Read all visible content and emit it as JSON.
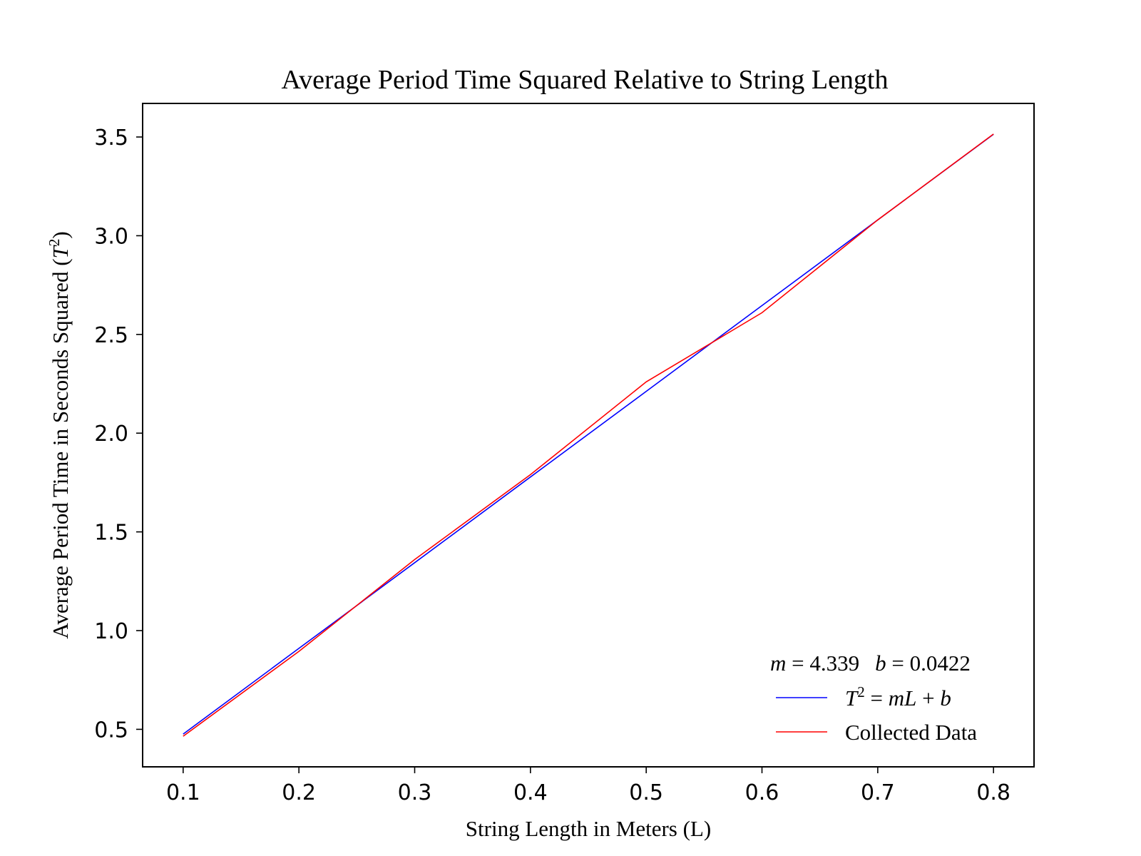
{
  "chart_data": {
    "type": "line",
    "title": "Average Period Time Squared Relative to String Length",
    "xlabel": "String Length in Meters (L)",
    "ylabel_prefix": "Average Period Time in Seconds Squared (",
    "ylabel_var": "T",
    "ylabel_sup": "2",
    "ylabel_suffix": ")",
    "xlim": [
      0.065,
      0.835
    ],
    "ylim": [
      0.31,
      3.67
    ],
    "x_ticks": [
      0.1,
      0.2,
      0.3,
      0.4,
      0.5,
      0.6,
      0.7,
      0.8
    ],
    "x_tick_labels": [
      "0.1",
      "0.2",
      "0.3",
      "0.4",
      "0.5",
      "0.6",
      "0.7",
      "0.8"
    ],
    "y_ticks": [
      0.5,
      1.0,
      1.5,
      2.0,
      2.5,
      3.0,
      3.5
    ],
    "y_tick_labels": [
      "0.5",
      "1.0",
      "1.5",
      "2.0",
      "2.5",
      "3.0",
      "3.5"
    ],
    "grid": false,
    "legend_position": "lower-right",
    "annotation": {
      "m_var": "m",
      "m_eq": " = 4.339",
      "b_var": "b",
      "b_eq": " = 0.0422"
    },
    "series": [
      {
        "legend_label": "T² = mL + b",
        "color": "#0000ff",
        "x": [
          0.1,
          0.2,
          0.3,
          0.4,
          0.5,
          0.6,
          0.7,
          0.8
        ],
        "y": [
          0.476,
          0.91,
          1.344,
          1.778,
          2.212,
          2.646,
          3.08,
          3.514
        ]
      },
      {
        "name": "Collected Data",
        "color": "#ff0000",
        "x": [
          0.1,
          0.2,
          0.3,
          0.4,
          0.5,
          0.6,
          0.7,
          0.8
        ],
        "y": [
          0.465,
          0.895,
          1.36,
          1.79,
          2.26,
          2.61,
          3.08,
          3.515
        ]
      }
    ]
  }
}
